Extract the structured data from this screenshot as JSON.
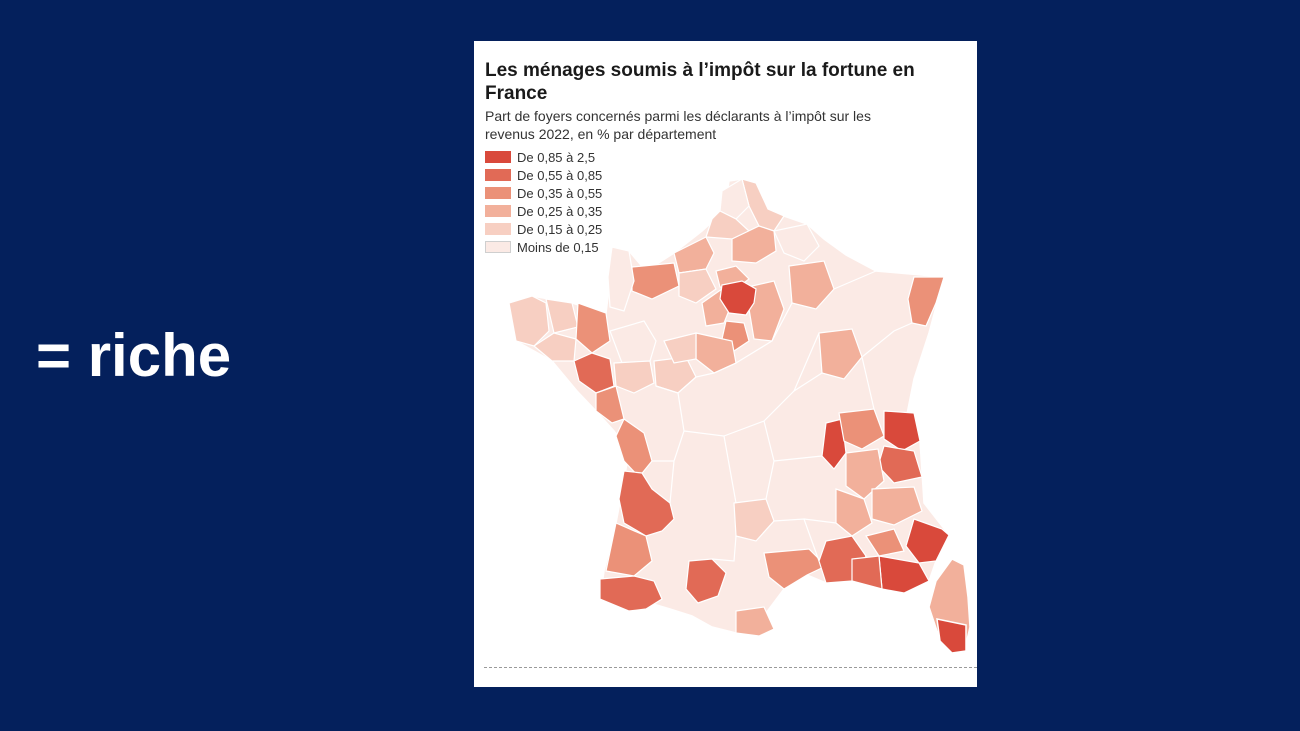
{
  "slide": {
    "text": "= riche"
  },
  "map": {
    "title": "Les ménages soumis à l’impôt sur la fortune en France",
    "subtitle": "Part de foyers concernés parmi les déclarants à l’impôt sur les revenus 2022, en % par département",
    "legend": [
      {
        "label": "De 0,85 à 2,5",
        "color": "#d9493b"
      },
      {
        "label": "De 0,55 à 0,85",
        "color": "#e16a56"
      },
      {
        "label": "De 0,35 à 0,55",
        "color": "#eb9178"
      },
      {
        "label": "De 0,25 à 0,35",
        "color": "#f2b09b"
      },
      {
        "label": "De 0,15 à 0,25",
        "color": "#f7cfc2"
      },
      {
        "label": "Moins de 0,15",
        "color": "#fbeae5"
      }
    ]
  }
}
